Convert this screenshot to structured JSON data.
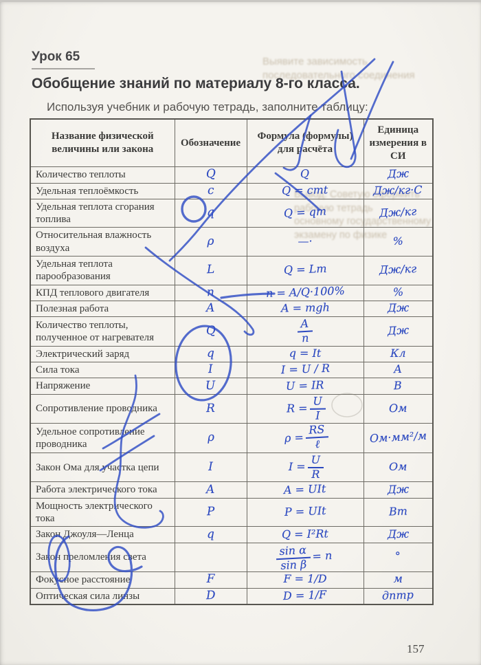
{
  "page": {
    "lesson_label": "Урок 65",
    "title": "Обобщение знаний по материалу 8-го класса.",
    "instruction": "Используя учебник и рабочую тетрадь, заполните таблицу:",
    "page_number": "157"
  },
  "bleedthrough": {
    "top_line": "Выявите зависимость последовательного соединения",
    "mid_line1": "Вывод: Советую оформить рабочую тетрадь",
    "mid_line2": "основному государственному экзамену по физике"
  },
  "ink_color": "#2c49c0",
  "table": {
    "headers": [
      "Название физической величины или закона",
      "Обозначение",
      "Формула (формулы) для расчёта",
      "Единица измерения в СИ"
    ],
    "rows": [
      {
        "name": "Количество теплоты",
        "symbol": "Q",
        "formula": "Q",
        "unit": "Дж"
      },
      {
        "name": "Удельная теплоёмкость",
        "symbol": "c",
        "formula": "Q = cmt",
        "unit": "Дж/кг·С"
      },
      {
        "name": "Удельная теплота сгорания топлива",
        "symbol": "q",
        "formula": "Q = qm",
        "unit": "Дж/кг"
      },
      {
        "name": "Относительная влажность воздуха",
        "symbol": "ρ",
        "formula": "—·",
        "unit": "%"
      },
      {
        "name": "Удельная теплота парообразования",
        "symbol": "L",
        "formula": "Q = Lm",
        "unit": "Дж/кг"
      },
      {
        "name": "КПД теплового двигателя",
        "symbol": "n",
        "formula": "n = A/Q·100%",
        "unit": "%"
      },
      {
        "name": "Полезная работа",
        "symbol": "A",
        "formula": "A = mgh",
        "unit": "Дж"
      },
      {
        "name": "Количество теплоты, полученное от нагревателя",
        "symbol": "Q",
        "formula": {
          "num": "A",
          "den": "n"
        },
        "unit": "Дж"
      },
      {
        "name": "Электрический заряд",
        "symbol": "q",
        "formula": "q = It",
        "unit": "Кл"
      },
      {
        "name": "Сила тока",
        "symbol": "I",
        "formula": "I = U / R",
        "unit": "А"
      },
      {
        "name": "Напряжение",
        "symbol": "U",
        "formula": "U = IR",
        "unit": "В"
      },
      {
        "name": "Сопротивление проводника",
        "symbol": "R",
        "formula": {
          "pre": "R =",
          "num": "U",
          "den": "I"
        },
        "unit": "Ом"
      },
      {
        "name": "Удельное сопротивление проводника",
        "symbol": "ρ",
        "formula": {
          "pre": "ρ =",
          "num": "RS",
          "den": "ℓ"
        },
        "unit": "Ом·мм²/м"
      },
      {
        "name": "Закон Ома для участка цепи",
        "symbol": "I",
        "formula": {
          "pre": "I =",
          "num": "U",
          "den": "R"
        },
        "unit": "Ом"
      },
      {
        "name": "Работа электрического тока",
        "symbol": "A",
        "formula": "A = UIt",
        "unit": "Дж"
      },
      {
        "name": "Мощность электрического тока",
        "symbol": "P",
        "formula": "P = UIt",
        "unit": "Вт"
      },
      {
        "name": "Закон Джоуля—Ленца",
        "symbol": "q",
        "formula": "Q = I²Rt",
        "unit": "Дж"
      },
      {
        "name": "Закон преломления света",
        "symbol": "",
        "formula": {
          "num": "sin α",
          "den": "sin β",
          "post": "= n"
        },
        "unit": "°"
      },
      {
        "name": "Фокусное расстояние",
        "symbol": "F",
        "formula": "F = 1/D",
        "unit": "м"
      },
      {
        "name": "Оптическая сила линзы",
        "symbol": "D",
        "formula": "D = 1/F",
        "unit": "дптр"
      }
    ]
  }
}
